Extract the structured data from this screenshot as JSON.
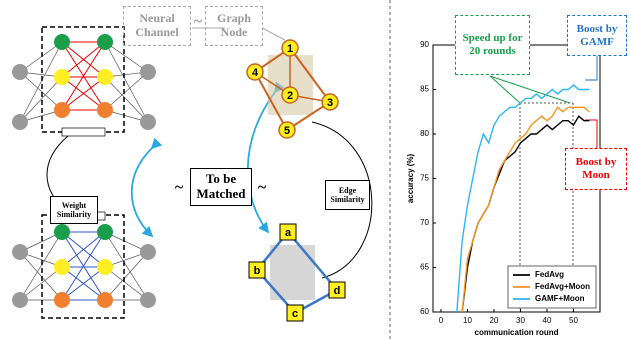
{
  "diagram": {
    "neural_channel": "Neural Channel",
    "graph_node": "Graph Node",
    "separator": "~",
    "to_be_matched": "To be Matched",
    "weight_similarity": "Weight Similarity",
    "edge_similarity": "Edge Similarity",
    "graph_a_nodes": [
      "1",
      "2",
      "3",
      "4",
      "5"
    ],
    "graph_b_nodes": [
      "a",
      "b",
      "c",
      "d"
    ]
  },
  "chart_data": {
    "type": "line",
    "xlabel": "communication round",
    "ylabel": "accuracy (%)",
    "x": [
      6,
      8,
      10,
      12,
      14,
      16,
      18,
      20,
      22,
      24,
      26,
      28,
      30,
      32,
      34,
      36,
      38,
      40,
      42,
      44,
      46,
      48,
      50,
      52,
      54,
      56
    ],
    "xlim": [
      -3,
      60
    ],
    "xticks": [
      0,
      10,
      20,
      30,
      40,
      50
    ],
    "ylim": [
      60,
      90
    ],
    "yticks": [
      60,
      65,
      70,
      75,
      80,
      85,
      90
    ],
    "legend": "lower right",
    "series": [
      {
        "name": "FedAvg",
        "color": "#000000",
        "values": [
          null,
          60,
          65,
          68,
          70,
          71,
          72,
          74,
          75.5,
          77,
          77.5,
          78,
          79,
          79.5,
          80,
          80,
          80.5,
          81,
          80.5,
          81,
          81.5,
          81.5,
          81,
          82,
          81.5,
          81.5
        ]
      },
      {
        "name": "FedAvg+Moon",
        "color": "#f7941d",
        "values": [
          null,
          60,
          66,
          68,
          70,
          71,
          72,
          74,
          76,
          77,
          78,
          79,
          79.5,
          80,
          81,
          81.5,
          82,
          81.5,
          82,
          83,
          82.5,
          83,
          83,
          83,
          83,
          82.5
        ]
      },
      {
        "name": "GAMF+Moon",
        "color": "#29b6f6",
        "values": [
          60,
          68,
          72,
          75,
          78,
          80,
          79,
          81,
          82,
          82.5,
          83,
          83,
          83.5,
          84,
          84,
          84.5,
          84,
          84.5,
          85,
          84.5,
          85,
          85,
          85.5,
          85,
          85,
          85
        ]
      }
    ],
    "annotations": [
      "Speed up for 20 rounds",
      "Boost by GAMF",
      "Boost by Moon"
    ]
  }
}
